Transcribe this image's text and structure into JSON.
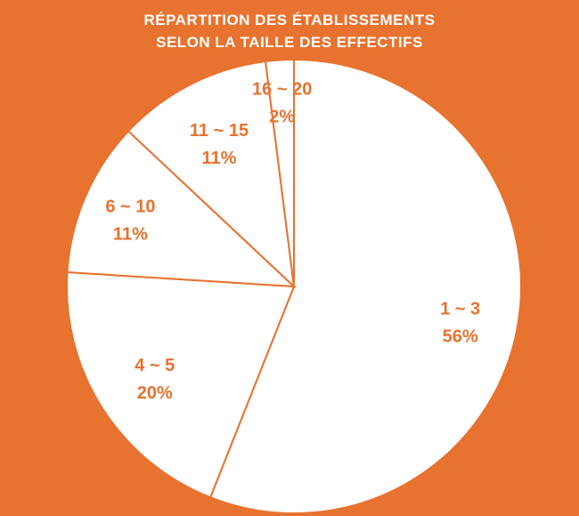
{
  "chart_data": {
    "type": "pie",
    "title_lines": [
      "RÉPARTITION DES ÉTABLISSEMENTS",
      "SELON LA TAILLE DES EFFECTIFS"
    ],
    "slices": [
      {
        "label": "1 ~ 3",
        "value": 56,
        "value_label": "56%"
      },
      {
        "label": "4 ~ 5",
        "value": 20,
        "value_label": "20%"
      },
      {
        "label": "6 ~ 10",
        "value": 11,
        "value_label": "11%"
      },
      {
        "label": "11 ~ 15",
        "value": 11,
        "value_label": "11%"
      },
      {
        "label": "16 ~ 20",
        "value": 2,
        "value_label": "2%"
      }
    ],
    "start": "12 o'clock",
    "direction": "clockwise",
    "colors": {
      "background": "#E8722F",
      "slice_fill": "#FFFFFF",
      "slice_border": "#E8722F",
      "label": "#E8722F",
      "title": "#FFFFFF"
    }
  }
}
